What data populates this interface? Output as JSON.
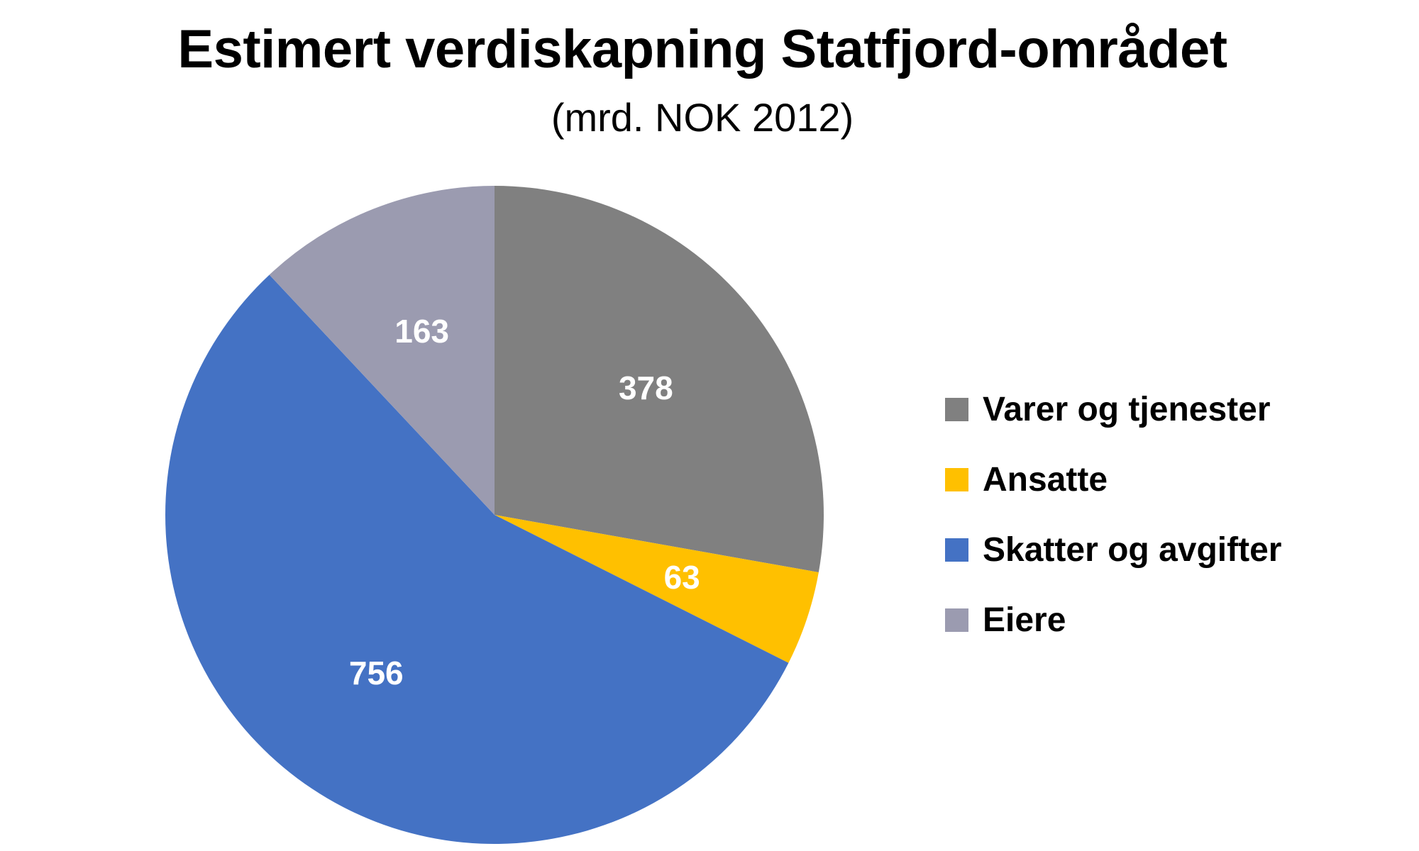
{
  "chart_data": {
    "type": "pie",
    "title": "Estimert verdiskapning Statfjord-området",
    "subtitle": "(mrd. NOK 2012)",
    "categories": [
      "Varer og tjenester",
      "Ansatte",
      "Skatter og avgifter",
      "Eiere"
    ],
    "values": [
      378,
      63,
      756,
      163
    ],
    "data_labels": [
      "378",
      "63",
      "756",
      "163"
    ],
    "colors": [
      "#808080",
      "#FFC000",
      "#4472C4",
      "#9B9BB0"
    ],
    "start_angle": "12 o'clock, clockwise",
    "legend_position": "right"
  }
}
